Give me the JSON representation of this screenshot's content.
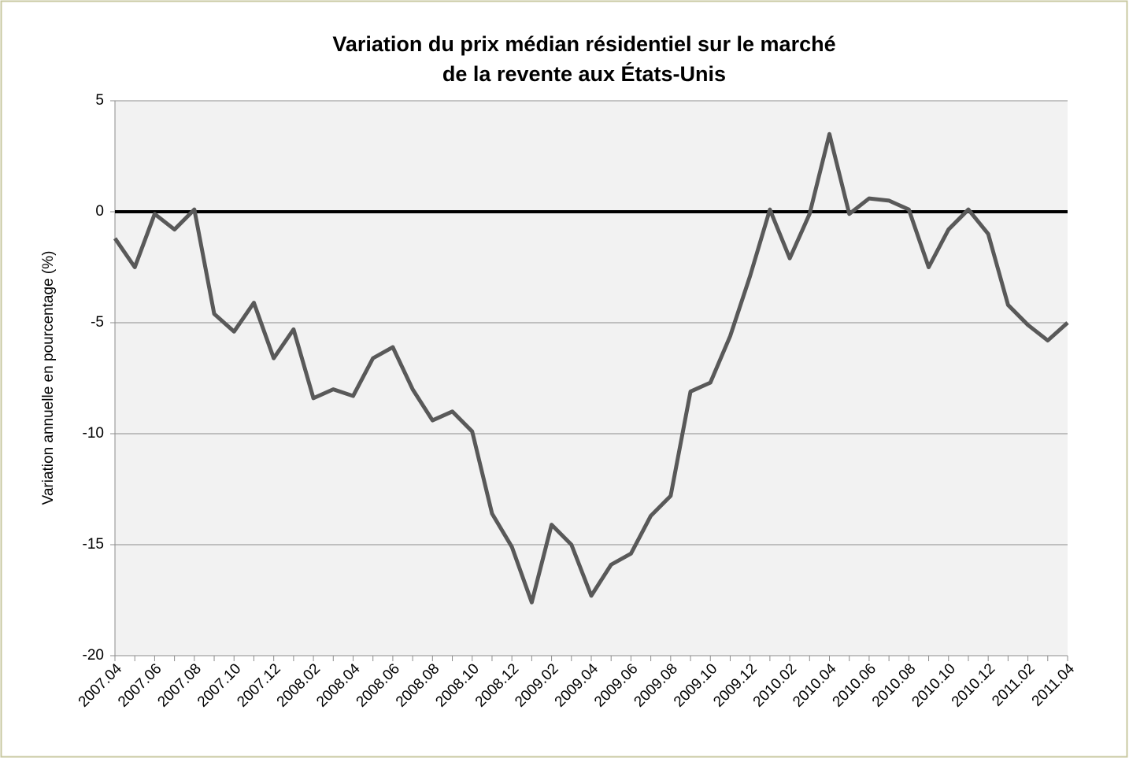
{
  "chart_data": {
    "type": "line",
    "title": [
      "Variation du prix médian résidentiel sur le marché",
      "de la revente aux États-Unis"
    ],
    "y_label": "Variation annuelle en pourcentage (%)",
    "categories": [
      "2007.04",
      null,
      "2007.06",
      null,
      "2007.08",
      null,
      "2007.10",
      null,
      "2007.12",
      null,
      "2008.02",
      null,
      "2008.04",
      null,
      "2008.06",
      null,
      "2008.08",
      null,
      "2008.10",
      null,
      "2008.12",
      null,
      "2009.02",
      null,
      "2009.04",
      null,
      "2009.06",
      null,
      "2009.08",
      null,
      "2009.10",
      null,
      "2009.12",
      null,
      "2010.02",
      null,
      "2010.04",
      null,
      "2010.06",
      null,
      "2010.08",
      null,
      "2010.10",
      null,
      "2010.12",
      null,
      "2011.02",
      null,
      "2011.04"
    ],
    "values": [
      -1.2,
      -2.5,
      -0.1,
      -0.8,
      0.1,
      -4.6,
      -5.4,
      -4.1,
      -6.6,
      -5.3,
      -8.4,
      -8.0,
      -8.3,
      -6.6,
      -6.1,
      -8.0,
      -9.4,
      -9.0,
      -9.9,
      -13.6,
      -15.1,
      -17.6,
      -14.1,
      -15.0,
      -17.3,
      -15.9,
      -15.4,
      -13.7,
      -12.8,
      -8.1,
      -7.7,
      -5.6,
      -2.9,
      0.1,
      -2.1,
      -0.1,
      3.5,
      -0.1,
      0.6,
      0.5,
      0.1,
      -2.5,
      -0.8,
      0.1,
      -1.0,
      -4.2,
      -5.1,
      -5.8,
      -5.0
    ],
    "color": "#595959",
    "hline": 0,
    "ylim": [
      -20,
      5
    ],
    "yticks": [
      5,
      0,
      -5,
      -10,
      -15,
      -20
    ],
    "grid": true
  }
}
